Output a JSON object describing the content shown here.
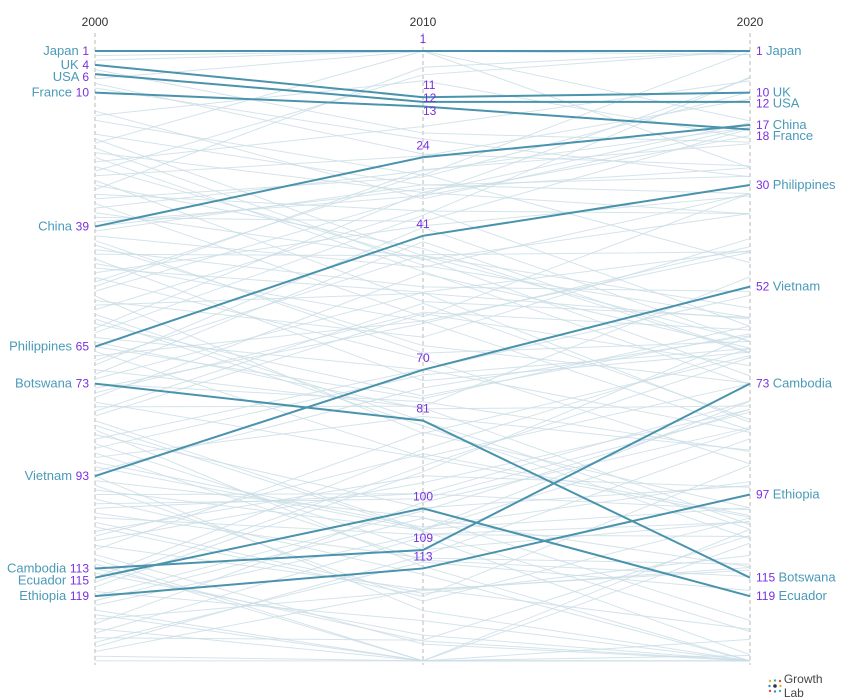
{
  "chart_data": {
    "type": "line",
    "subtype": "slope/bump chart of rankings",
    "x": [
      "2000",
      "2010",
      "2020"
    ],
    "y_axis": {
      "reversed": true,
      "range": [
        1,
        133
      ]
    },
    "grid": false,
    "colors": {
      "highlight": "#4a93ad",
      "context": "#c9dde6",
      "label": "#4a9ab8",
      "rank": "#7a2fe0",
      "axis": "#b8b8b8"
    },
    "series": [
      {
        "name": "Japan",
        "values": [
          1,
          1,
          1
        ]
      },
      {
        "name": "UK",
        "values": [
          4,
          11,
          10
        ]
      },
      {
        "name": "USA",
        "values": [
          6,
          12,
          12
        ]
      },
      {
        "name": "France",
        "values": [
          10,
          13,
          18
        ]
      },
      {
        "name": "China",
        "values": [
          39,
          24,
          17
        ]
      },
      {
        "name": "Philippines",
        "values": [
          65,
          41,
          30
        ]
      },
      {
        "name": "Vietnam",
        "values": [
          93,
          70,
          52
        ]
      },
      {
        "name": "Botswana",
        "values": [
          73,
          81,
          115
        ]
      },
      {
        "name": "Cambodia",
        "values": [
          113,
          109,
          73
        ]
      },
      {
        "name": "Ecuador",
        "values": [
          115,
          100,
          119
        ]
      },
      {
        "name": "Ethiopia",
        "values": [
          119,
          113,
          97
        ]
      }
    ]
  },
  "logo": {
    "text": "Growth Lab"
  }
}
